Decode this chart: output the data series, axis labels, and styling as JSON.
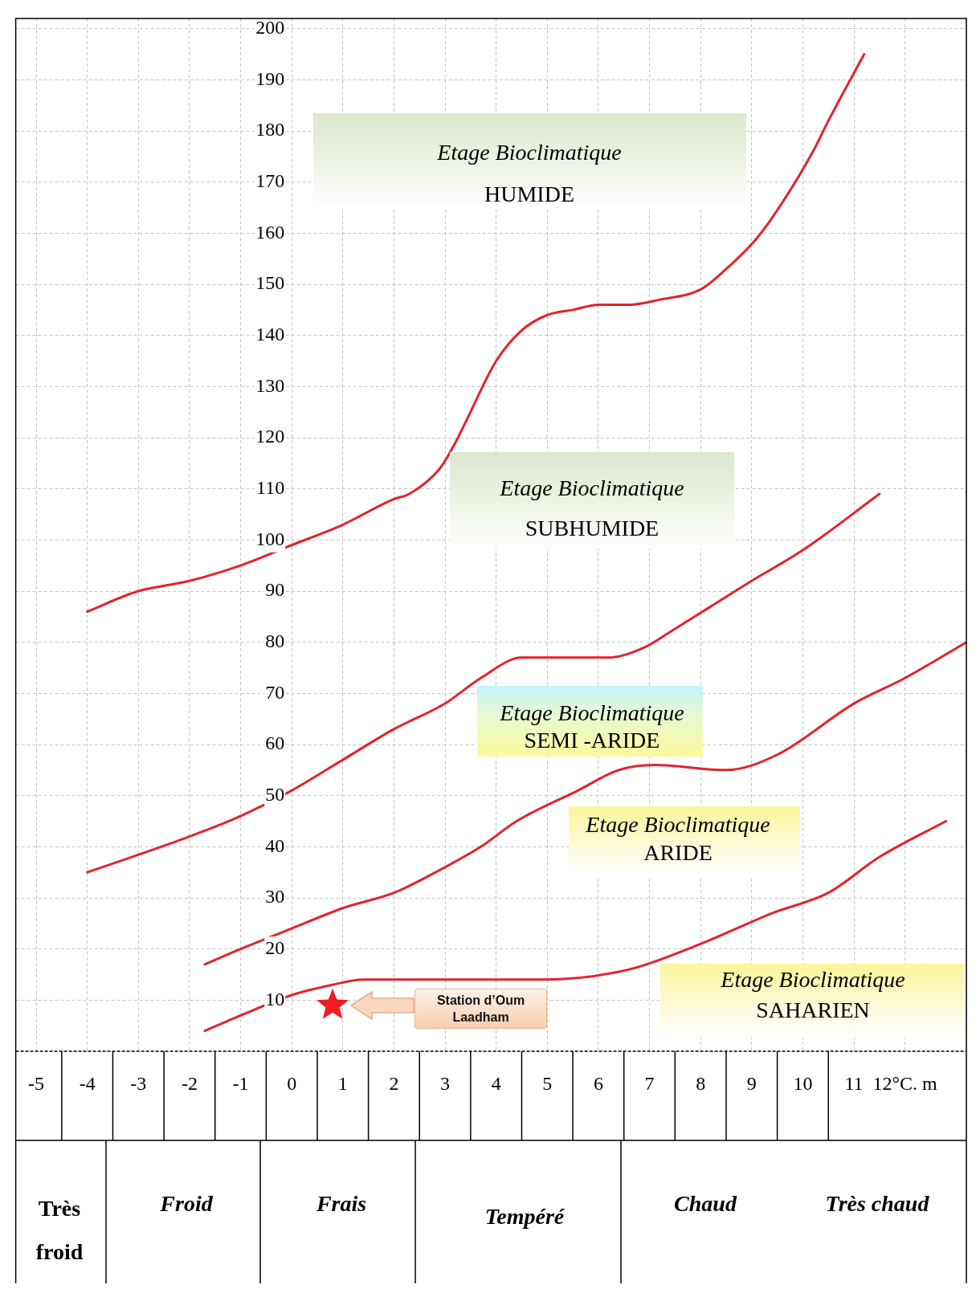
{
  "chart_data": {
    "type": "line",
    "xlim": [
      -5.4,
      13.2
    ],
    "xticks": [
      -5,
      -4,
      -3,
      -2,
      -1,
      0,
      1,
      2,
      3,
      4,
      5,
      6,
      7,
      8,
      9,
      10,
      11,
      {
        "value": 12,
        "label": "12°C. m"
      }
    ],
    "ylim": [
      0,
      202
    ],
    "yticks": [
      10,
      20,
      30,
      40,
      50,
      60,
      70,
      80,
      90,
      100,
      110,
      120,
      130,
      140,
      150,
      160,
      170,
      180,
      190,
      200
    ],
    "grid": true,
    "series": [
      {
        "color": "#e2232f",
        "x": [
          -4,
          -3,
          -2,
          -1,
          0,
          1,
          2,
          2.3,
          2.9,
          3.2,
          3.4,
          4,
          4.5,
          5,
          5.5,
          6,
          6.6,
          7.2,
          8,
          8.5,
          9.1,
          9.6,
          10.2,
          10.5,
          11.2
        ],
        "values": [
          86,
          90,
          92,
          95,
          99,
          103,
          108,
          109,
          114,
          119,
          123,
          135,
          141,
          144,
          145,
          146,
          146,
          147,
          149,
          153,
          159,
          166,
          176,
          182,
          195
        ]
      },
      {
        "color": "#e2232f",
        "x": [
          -4,
          -2,
          -1,
          0,
          1,
          2,
          3,
          3.7,
          4.5,
          5.3,
          6.2,
          6.9,
          7.4,
          8.2,
          9,
          10,
          11.5
        ],
        "values": [
          35,
          42,
          46,
          51,
          57,
          63,
          68,
          73,
          77,
          77,
          77,
          79,
          82,
          87,
          92,
          98,
          109
        ]
      },
      {
        "color": "#e2232f",
        "x": [
          -1.7,
          -1,
          0,
          1,
          2,
          3,
          3.7,
          4.4,
          5.6,
          6.4,
          7.1,
          8.5,
          9.5,
          11,
          12,
          13.2
        ],
        "values": [
          17,
          20,
          24,
          28,
          31,
          36,
          40,
          45,
          51,
          55,
          56,
          55,
          58,
          68,
          73,
          80
        ]
      },
      {
        "color": "#e2232f",
        "x": [
          -1.7,
          -1,
          0,
          0.8,
          1.4,
          2.4,
          4.9,
          6.6,
          8,
          9.4,
          10.5,
          11.5,
          12.8
        ],
        "values": [
          4,
          7,
          11,
          13,
          14,
          14,
          14,
          16,
          21,
          27,
          31,
          38,
          45
        ]
      },
      {
        "type": "scatter",
        "name": "Station d’Oum Laadham",
        "color": "#ee1c24",
        "marker": "star",
        "x": [
          0.8
        ],
        "values": [
          9
        ]
      }
    ],
    "annotations": [
      "Etage Bioclimatique\nHUMIDE",
      "Etage Bioclimatique\nSUBHUMIDE",
      "Etage Bioclimatique\nSEMI -ARIDE",
      "Etage Bioclimatique\nARIDE",
      "Etage Bioclimatique\nSAHARIEN",
      "Très froid",
      "Froid",
      "Frais",
      "Tempéré",
      "Chaud",
      "Très chaud"
    ]
  }
}
